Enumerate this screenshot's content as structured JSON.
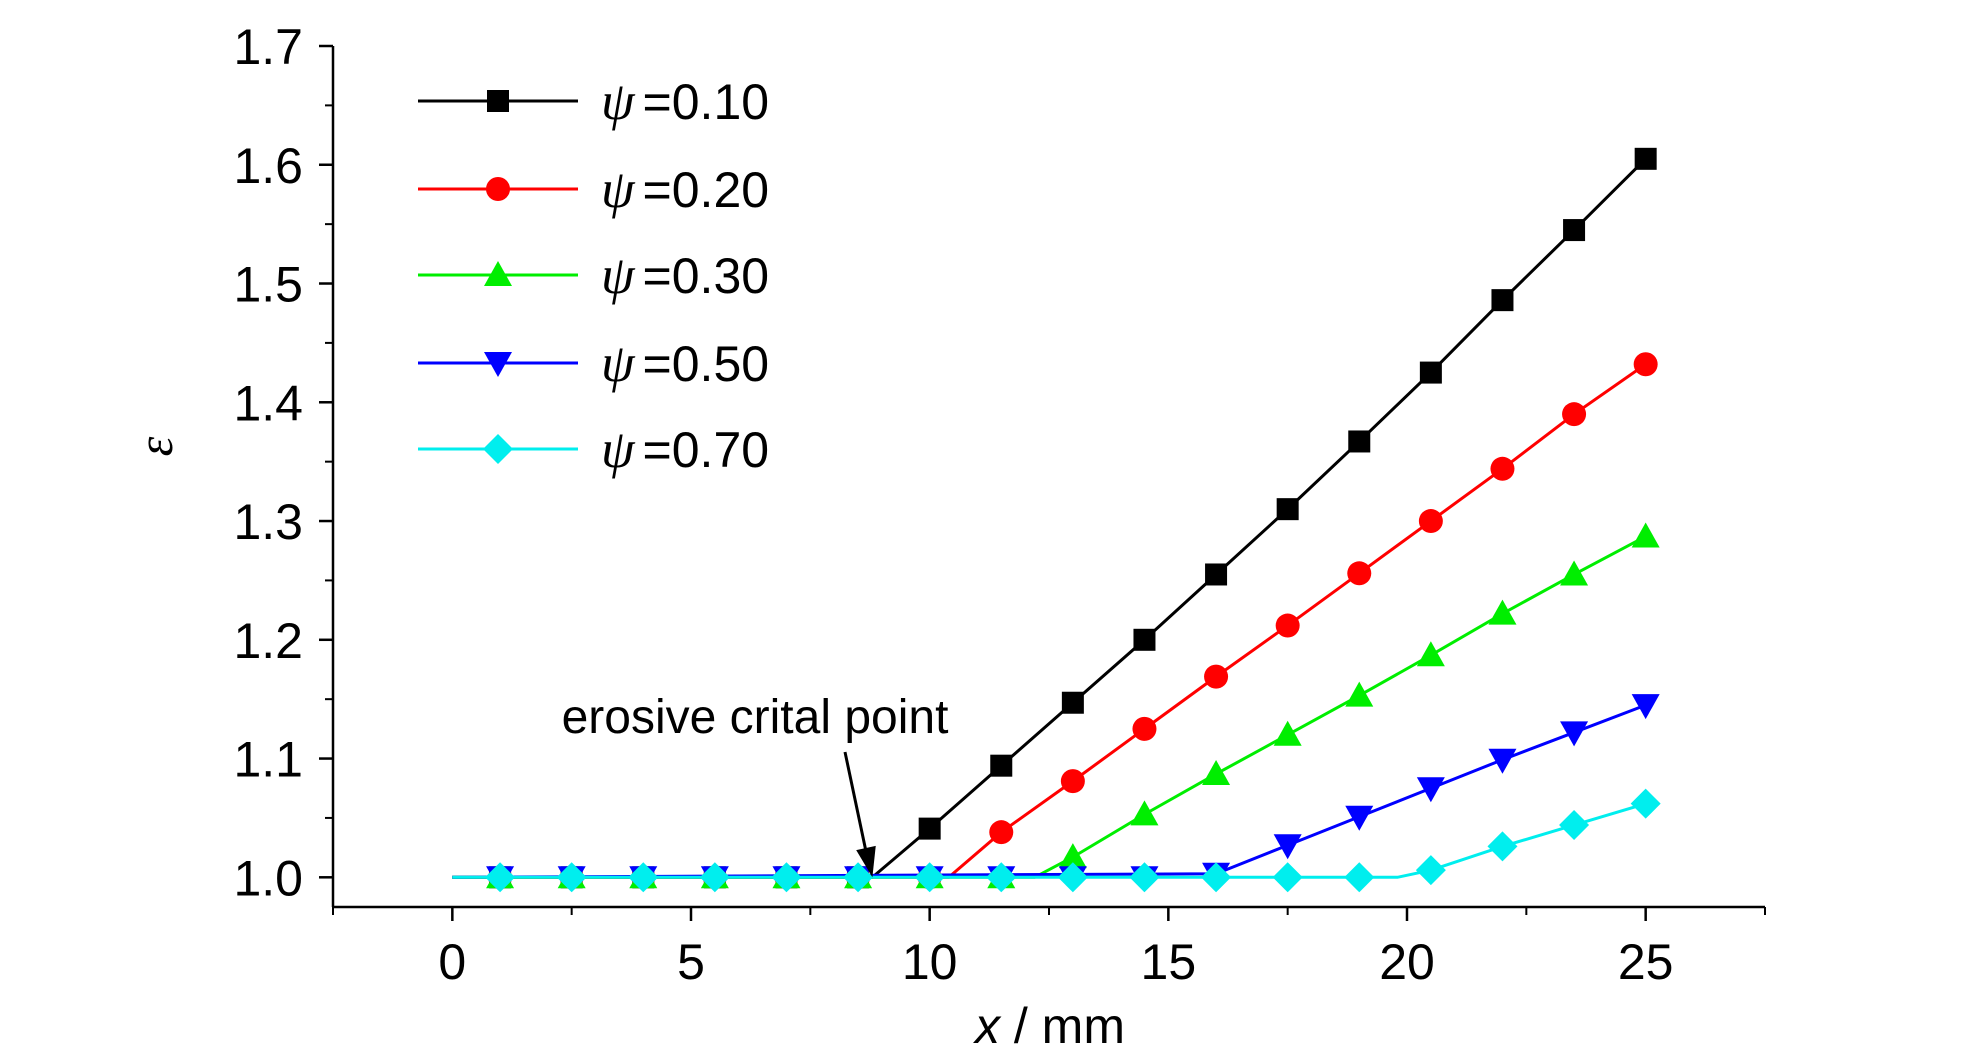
{
  "chart_data": {
    "type": "line",
    "title": "",
    "xlabel_var": "x",
    "xlabel_unit": " / mm",
    "ylabel": "ε",
    "xlim": [
      -2.5,
      27.5
    ],
    "ylim": [
      0.975,
      1.7
    ],
    "xticks": [
      0,
      5,
      10,
      15,
      20,
      25
    ],
    "xtick_labels": [
      "0",
      "5",
      "10",
      "15",
      "20",
      "25"
    ],
    "yticks": [
      1.0,
      1.1,
      1.2,
      1.3,
      1.4,
      1.5,
      1.6,
      1.7
    ],
    "ytick_labels": [
      "1.0",
      "1.1",
      "1.2",
      "1.3",
      "1.4",
      "1.5",
      "1.6",
      "1.7"
    ],
    "grid": false,
    "legend_position": "top-left",
    "annotation": {
      "text": "erosive crital point",
      "x": 8.8,
      "y": 1.0
    },
    "series": [
      {
        "name_symbol": "ψ",
        "name_value": "=0.10",
        "color": "#000000",
        "marker": "square",
        "line_x": [
          0,
          8.8,
          10,
          11.5,
          13,
          14.5,
          16,
          17.5,
          19,
          20.5,
          22,
          23.5,
          25
        ],
        "line_y": [
          1.0,
          1.0,
          1.041,
          1.094,
          1.147,
          1.2,
          1.255,
          1.31,
          1.367,
          1.425,
          1.486,
          1.545,
          1.605
        ],
        "x": [
          1,
          2.5,
          4,
          5.5,
          7,
          8.5,
          10,
          11.5,
          13,
          14.5,
          16,
          17.5,
          19,
          20.5,
          22,
          23.5,
          25
        ],
        "values": [
          1.0,
          1.0,
          1.0,
          1.0,
          1.0,
          1.0,
          1.041,
          1.094,
          1.147,
          1.2,
          1.255,
          1.31,
          1.367,
          1.425,
          1.486,
          1.545,
          1.605
        ]
      },
      {
        "name_symbol": "ψ",
        "name_value": "=0.20",
        "color": "#ff0000",
        "marker": "circle",
        "line_x": [
          0,
          10.4,
          11.5,
          13,
          14.5,
          16,
          17.5,
          19,
          20.5,
          22,
          23.5,
          25
        ],
        "line_y": [
          1.0,
          1.0,
          1.038,
          1.081,
          1.125,
          1.169,
          1.212,
          1.256,
          1.3,
          1.344,
          1.39,
          1.432
        ],
        "x": [
          1,
          2.5,
          4,
          5.5,
          7,
          8.5,
          10,
          11.5,
          13,
          14.5,
          16,
          17.5,
          19,
          20.5,
          22,
          23.5,
          25
        ],
        "values": [
          1.0,
          1.0,
          1.0,
          1.0,
          1.0,
          1.0,
          1.0,
          1.038,
          1.081,
          1.125,
          1.169,
          1.212,
          1.256,
          1.3,
          1.344,
          1.39,
          1.432
        ]
      },
      {
        "name_symbol": "ψ",
        "name_value": "=0.30",
        "color": "#00ee00",
        "marker": "triangle-up",
        "line_x": [
          0,
          12.2,
          13,
          14.5,
          16,
          17.5,
          19,
          20.5,
          22,
          23.5,
          25
        ],
        "line_y": [
          1.0,
          1.0,
          1.017,
          1.053,
          1.087,
          1.12,
          1.153,
          1.187,
          1.222,
          1.255,
          1.287
        ],
        "x": [
          1,
          2.5,
          4,
          5.5,
          7,
          8.5,
          10,
          11.5,
          13,
          14.5,
          16,
          17.5,
          19,
          20.5,
          22,
          23.5,
          25
        ],
        "values": [
          1.0,
          1.0,
          1.0,
          1.0,
          1.0,
          1.0,
          1.0,
          1.0,
          1.017,
          1.053,
          1.087,
          1.12,
          1.153,
          1.187,
          1.222,
          1.255,
          1.287
        ]
      },
      {
        "name_symbol": "ψ",
        "name_value": "=0.50",
        "color": "#0000ff",
        "marker": "triangle-down",
        "line_x": [
          0,
          16,
          17.5,
          19,
          20.5,
          22,
          23.5,
          25
        ],
        "line_y": [
          1.0,
          1.003,
          1.027,
          1.051,
          1.075,
          1.099,
          1.122,
          1.145
        ],
        "x": [
          1,
          2.5,
          4,
          5.5,
          7,
          8.5,
          10,
          11.5,
          13,
          14.5,
          16,
          17.5,
          19,
          20.5,
          22,
          23.5,
          25
        ],
        "values": [
          1.0,
          1.0,
          1.0,
          1.0,
          1.0,
          1.0,
          1.0,
          1.0,
          1.0,
          1.0,
          1.003,
          1.027,
          1.051,
          1.075,
          1.099,
          1.122,
          1.145
        ]
      },
      {
        "name_symbol": "ψ",
        "name_value": "=0.70",
        "color": "#00eeee",
        "marker": "diamond",
        "line_x": [
          0,
          19.8,
          20.5,
          22,
          23.5,
          25
        ],
        "line_y": [
          1.0,
          1.0,
          1.006,
          1.026,
          1.044,
          1.062
        ],
        "x": [
          1,
          2.5,
          4,
          5.5,
          7,
          8.5,
          10,
          11.5,
          13,
          14.5,
          16,
          17.5,
          19,
          20.5,
          22,
          23.5,
          25
        ],
        "values": [
          1.0,
          1.0,
          1.0,
          1.0,
          1.0,
          1.0,
          1.0,
          1.0,
          1.0,
          1.0,
          1.0,
          1.0,
          1.0,
          1.006,
          1.026,
          1.044,
          1.062
        ]
      }
    ]
  }
}
